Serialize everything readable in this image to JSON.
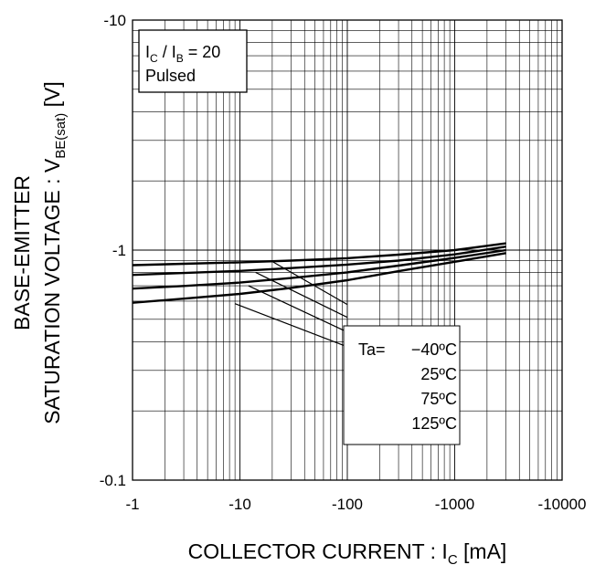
{
  "chart_data": {
    "type": "line",
    "title": "",
    "x_scale": "log",
    "y_scale": "log",
    "xlim": [
      -1,
      -10000
    ],
    "ylim": [
      -0.1,
      -10
    ],
    "x_ticks": [
      "-1",
      "-10",
      "-100",
      "-1000",
      "-10000"
    ],
    "y_ticks": [
      "-0.1",
      "-1",
      "-10"
    ],
    "xlabel": {
      "main": "COLLECTOR CURRENT : I",
      "sub": "C",
      "unit": " [mA]"
    },
    "ylabel": {
      "line1": "BASE-EMITTER",
      "line2_main": "SATURATION VOLTAGE : V",
      "line2_sub": "BE(sat)",
      "line2_unit": " [V]"
    },
    "grid": true,
    "condition_box": {
      "line1": {
        "a": "I",
        "a_sub": "C",
        "mid": " / I",
        "b_sub": "B",
        "rest": " = 20"
      },
      "line2": "Pulsed"
    },
    "legend": {
      "header": "Ta=",
      "labels": [
        "−40ºC",
        "25ºC",
        "75ºC",
        "125ºC"
      ]
    },
    "series": [
      {
        "name": "−40ºC",
        "x": [
          -1,
          -3,
          -10,
          -30,
          -100,
          -300,
          -1000,
          -3000
        ],
        "y": [
          -0.86,
          -0.872,
          -0.885,
          -0.9,
          -0.922,
          -0.955,
          -1.0,
          -1.07
        ]
      },
      {
        "name": "25ºC",
        "x": [
          -1,
          -3,
          -10,
          -30,
          -100,
          -300,
          -1000,
          -3000
        ],
        "y": [
          -0.78,
          -0.795,
          -0.812,
          -0.835,
          -0.865,
          -0.9,
          -0.958,
          -1.035
        ]
      },
      {
        "name": "75ºC",
        "x": [
          -1,
          -3,
          -10,
          -30,
          -100,
          -300,
          -1000,
          -3000
        ],
        "y": [
          -0.68,
          -0.698,
          -0.722,
          -0.756,
          -0.8,
          -0.856,
          -0.925,
          -1.0
        ]
      },
      {
        "name": "125ºC",
        "x": [
          -1,
          -3,
          -10,
          -30,
          -100,
          -300,
          -1000,
          -3000
        ],
        "y": [
          -0.59,
          -0.615,
          -0.645,
          -0.685,
          -0.74,
          -0.81,
          -0.89,
          -0.97
        ]
      }
    ],
    "legend_leaders": [
      {
        "x": [
          -20,
          -100
        ],
        "y": [
          -0.892,
          -0.58
        ]
      },
      {
        "x": [
          -14,
          -100
        ],
        "y": [
          -0.8,
          -0.51
        ]
      },
      {
        "x": [
          -12,
          -100
        ],
        "y": [
          -0.7,
          -0.44
        ]
      },
      {
        "x": [
          -9,
          -100
        ],
        "y": [
          -0.585,
          -0.38
        ]
      }
    ]
  }
}
